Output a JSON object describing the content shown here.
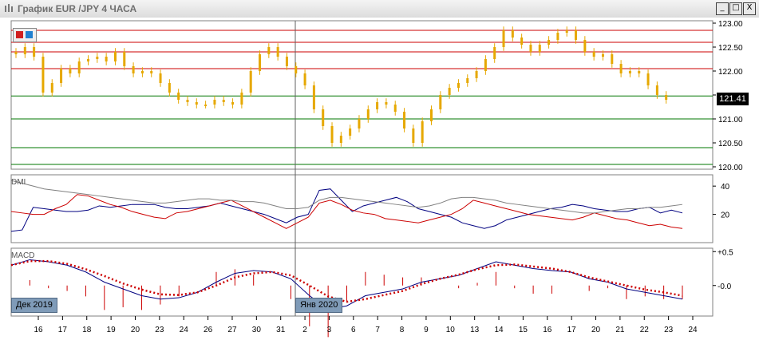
{
  "window": {
    "title": "График EUR /JPY  4 ЧАСА",
    "minimize_glyph": "_",
    "maximize_glyph": "□",
    "close_glyph": "X"
  },
  "price_tag": "121.41",
  "date_tags": [
    "Дек 2019",
    "Янв 2020"
  ],
  "panels": {
    "dmi_label": "DMI",
    "macd_label": "MACD"
  },
  "chart_data": [
    {
      "type": "candlestick",
      "title": "EUR/JPY 4H",
      "y_ticks": [
        "123.00",
        "122.50",
        "122.00",
        "121.50",
        "121.00",
        "120.50",
        "120.00"
      ],
      "ylim": [
        119.95,
        123.05
      ],
      "x_tick_labels": [
        "16",
        "17",
        "18",
        "19",
        "20",
        "23",
        "24",
        "26",
        "27",
        "30",
        "31",
        "2",
        "3",
        "6",
        "7",
        "8",
        "9",
        "10",
        "13",
        "14",
        "15",
        "16",
        "17",
        "20",
        "21",
        "22",
        "23",
        "24"
      ],
      "last_price": 121.41,
      "horizontal_levels_red": [
        122.85,
        122.6,
        122.4,
        122.05
      ],
      "horizontal_levels_green": [
        121.48,
        121.0,
        120.4,
        120.05
      ],
      "colors": {
        "candles": "#e6a800",
        "resistance": "#cc0000",
        "support": "#007700",
        "grid": "#c8c8c8"
      },
      "close": [
        122.35,
        122.5,
        122.3,
        121.55,
        121.75,
        122.05,
        121.95,
        122.2,
        122.25,
        122.3,
        122.2,
        122.4,
        122.1,
        121.95,
        122.0,
        121.95,
        121.75,
        121.55,
        121.4,
        121.35,
        121.3,
        121.3,
        121.4,
        121.35,
        121.3,
        121.55,
        122.0,
        122.35,
        122.5,
        122.3,
        122.1,
        121.95,
        121.7,
        121.2,
        120.85,
        120.5,
        120.65,
        120.8,
        121.0,
        121.2,
        121.35,
        121.3,
        121.15,
        120.8,
        120.5,
        120.95,
        121.2,
        121.5,
        121.65,
        121.75,
        121.85,
        122.0,
        122.25,
        122.5,
        122.85,
        122.7,
        122.55,
        122.4,
        122.55,
        122.65,
        122.8,
        122.85,
        122.65,
        122.4,
        122.3,
        122.35,
        122.15,
        121.95,
        122.0,
        121.95,
        121.7,
        121.5,
        121.4
      ]
    },
    {
      "type": "line",
      "title": "DMI",
      "y_ticks": [
        "40",
        "20"
      ],
      "ylim": [
        0,
        48
      ],
      "series": [
        {
          "color": "#000080",
          "values": [
            8,
            9,
            25,
            24,
            23,
            22,
            22,
            23,
            26,
            25,
            26,
            27,
            27,
            27,
            25,
            24,
            24,
            25,
            26,
            28,
            26,
            24,
            22,
            20,
            17,
            14,
            18,
            20,
            37,
            38,
            30,
            22,
            26,
            28,
            30,
            32,
            29,
            24,
            22,
            20,
            18,
            14,
            12,
            10,
            12,
            16,
            18,
            20,
            22,
            24,
            25,
            27,
            26,
            24,
            23,
            22,
            22,
            24,
            25,
            21,
            23,
            21
          ]
        },
        {
          "color": "#cc0000",
          "values": [
            22,
            21,
            20,
            20,
            24,
            27,
            34,
            33,
            30,
            27,
            25,
            22,
            20,
            18,
            17,
            21,
            22,
            24,
            26,
            28,
            30,
            26,
            22,
            18,
            14,
            10,
            14,
            18,
            28,
            30,
            27,
            23,
            21,
            20,
            17,
            16,
            15,
            14,
            16,
            18,
            20,
            24,
            30,
            28,
            26,
            24,
            22,
            20,
            19,
            18,
            17,
            16,
            18,
            21,
            19,
            17,
            16,
            14,
            12,
            13,
            11,
            10
          ]
        },
        {
          "color": "#808080",
          "values": [
            44,
            42,
            40,
            38,
            37,
            36,
            35,
            34,
            33,
            32,
            31,
            30,
            29,
            28,
            28,
            29,
            30,
            31,
            31,
            30,
            30,
            29,
            29,
            28,
            26,
            24,
            24,
            25,
            30,
            32,
            32,
            31,
            30,
            29,
            28,
            27,
            26,
            25,
            26,
            28,
            31,
            32,
            32,
            31,
            30,
            28,
            27,
            26,
            25,
            24,
            23,
            22,
            21,
            21,
            22,
            23,
            24,
            24,
            25,
            25,
            26,
            27
          ]
        }
      ]
    },
    {
      "type": "line",
      "title": "MACD",
      "y_ticks": [
        "+0.5",
        "-0.0"
      ],
      "ylim": [
        -0.45,
        0.55
      ],
      "series": [
        {
          "color": "#000080",
          "values": [
            0.3,
            0.38,
            0.35,
            0.3,
            0.2,
            0.05,
            -0.05,
            -0.15,
            -0.2,
            -0.18,
            -0.1,
            0.05,
            0.18,
            0.22,
            0.2,
            0.1,
            -0.15,
            -0.35,
            -0.3,
            -0.15,
            -0.1,
            -0.05,
            0.05,
            0.1,
            0.15,
            0.25,
            0.35,
            0.3,
            0.25,
            0.22,
            0.2,
            0.1,
            0.05,
            -0.05,
            -0.1,
            -0.15,
            -0.2
          ]
        },
        {
          "color": "#cc0000",
          "values": [
            0.3,
            0.36,
            0.36,
            0.32,
            0.24,
            0.14,
            0.03,
            -0.06,
            -0.13,
            -0.14,
            -0.1,
            0.0,
            0.12,
            0.18,
            0.2,
            0.15,
            0.0,
            -0.16,
            -0.24,
            -0.2,
            -0.14,
            -0.08,
            0.02,
            0.1,
            0.16,
            0.24,
            0.3,
            0.31,
            0.28,
            0.25,
            0.2,
            0.12,
            0.06,
            0.0,
            -0.06,
            -0.1,
            -0.15
          ]
        }
      ]
    }
  ]
}
